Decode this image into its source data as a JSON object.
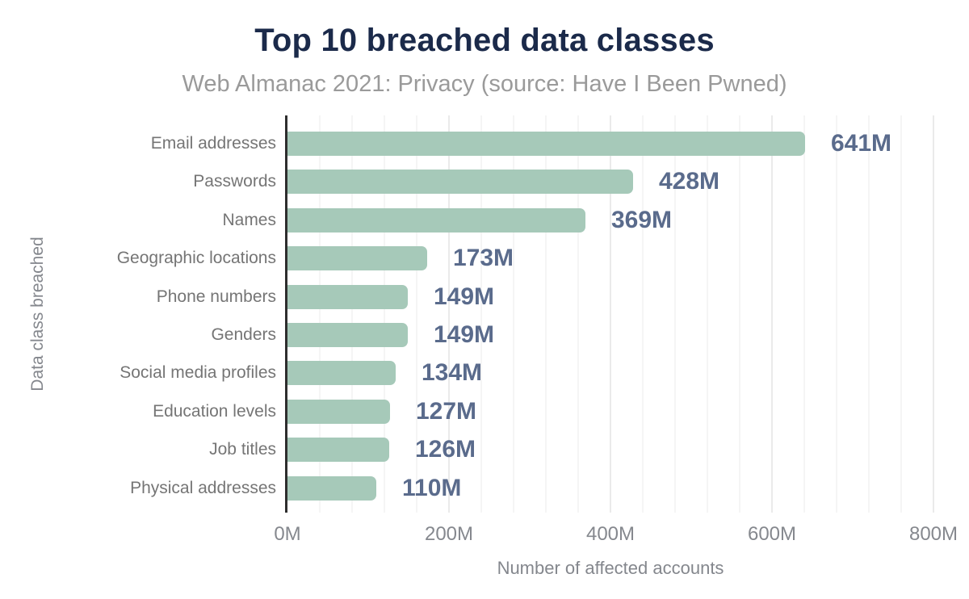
{
  "chart_data": {
    "type": "bar",
    "orientation": "horizontal",
    "title": "Top 10 breached data classes",
    "subtitle": "Web Almanac 2021: Privacy (source: Have I Been Pwned)",
    "categories": [
      "Email addresses",
      "Passwords",
      "Names",
      "Geographic locations",
      "Phone numbers",
      "Genders",
      "Social media profiles",
      "Education levels",
      "Job titles",
      "Physical addresses"
    ],
    "values": [
      641,
      428,
      369,
      173,
      149,
      149,
      134,
      127,
      126,
      110
    ],
    "value_labels": [
      "641M",
      "428M",
      "369M",
      "173M",
      "149M",
      "149M",
      "134M",
      "127M",
      "126M",
      "110M"
    ],
    "unit": "M",
    "xlabel": "Number of affected accounts",
    "ylabel": "Data class breached",
    "xlim": [
      0,
      800
    ],
    "x_ticks": [
      {
        "value": 0,
        "label": "0M"
      },
      {
        "value": 200,
        "label": "200M"
      },
      {
        "value": 400,
        "label": "400M"
      },
      {
        "value": 600,
        "label": "600M"
      },
      {
        "value": 800,
        "label": "800M"
      }
    ],
    "grid": {
      "minor_step": 40,
      "major_step": 200,
      "visible": true
    },
    "legend": "none",
    "colors": {
      "bar": "#a6c9b9",
      "value_label": "#5a6b8c",
      "title": "#1b2a4a",
      "subtitle": "#9a9a9a",
      "category_label": "#757575",
      "tick_label": "#85888e",
      "axis_title": "#84878d",
      "axis_line": "#2e2e2e",
      "grid_minor": "#f5f5f5",
      "grid_major": "#eaeaea",
      "background": "#ffffff"
    }
  }
}
